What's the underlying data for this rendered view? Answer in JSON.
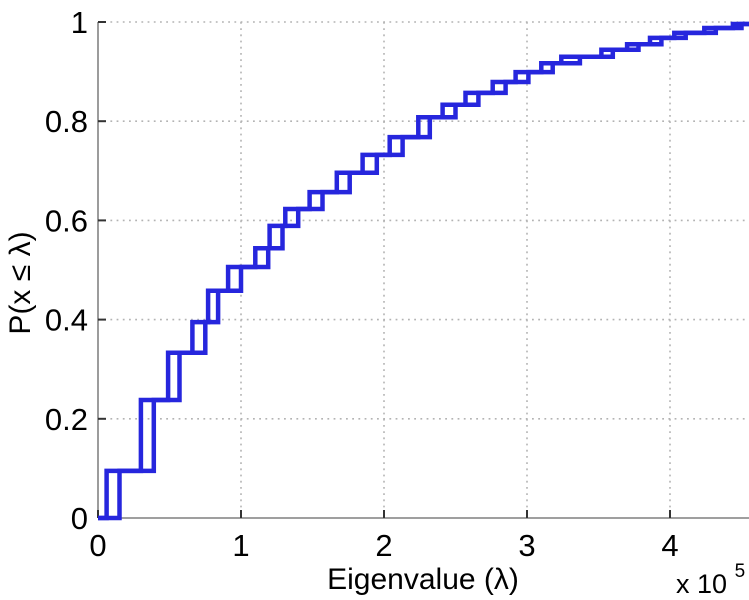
{
  "chart_data": {
    "type": "line",
    "subtype": "empirical-cdf-staircase",
    "title": "",
    "xlabel": "Eigenvalue (λ)",
    "ylabel": "P(x ≤ λ)",
    "x_unit_multiplier": {
      "base": "x 10",
      "exponent": "5"
    },
    "xlim": [
      0,
      4.55
    ],
    "ylim": [
      0,
      1
    ],
    "x_ticks": [
      {
        "value": 0,
        "label": "0"
      },
      {
        "value": 1,
        "label": "1"
      },
      {
        "value": 2,
        "label": "2"
      },
      {
        "value": 3,
        "label": "3"
      },
      {
        "value": 4,
        "label": "4"
      }
    ],
    "y_ticks": [
      {
        "value": 0,
        "label": "0"
      },
      {
        "value": 0.2,
        "label": "0.2"
      },
      {
        "value": 0.4,
        "label": "0.4"
      },
      {
        "value": 0.6,
        "label": "0.6"
      },
      {
        "value": 0.8,
        "label": "0.8"
      },
      {
        "value": 1,
        "label": "1"
      }
    ],
    "grid": "dotted",
    "legend": "none",
    "line_color": "#2626dd",
    "grid_color": "#b3b3b3",
    "axis_color": "#666666",
    "tick_color": "#333333",
    "text_color": "#000000",
    "series": [
      {
        "name": "ecdf-curve-1",
        "cumulative_probability_levels": [
          0.095,
          0.238,
          0.333,
          0.395,
          0.458,
          0.506,
          0.544,
          0.589,
          0.623,
          0.657,
          0.696,
          0.732,
          0.768,
          0.808,
          0.833,
          0.857,
          0.879,
          0.899,
          0.917,
          0.93,
          0.944,
          0.955,
          0.968,
          0.978,
          0.988,
          0.996
        ],
        "jump_x_values_e5": [
          0.06,
          0.3,
          0.49,
          0.66,
          0.77,
          0.91,
          1.1,
          1.2,
          1.31,
          1.48,
          1.67,
          1.85,
          2.04,
          2.24,
          2.41,
          2.57,
          2.76,
          2.92,
          3.1,
          3.24,
          3.52,
          3.7,
          3.86,
          4.03,
          4.24,
          4.44
        ]
      },
      {
        "name": "ecdf-curve-2",
        "cumulative_probability_levels": [
          0.095,
          0.238,
          0.333,
          0.395,
          0.458,
          0.506,
          0.544,
          0.589,
          0.623,
          0.657,
          0.696,
          0.732,
          0.768,
          0.808,
          0.833,
          0.857,
          0.879,
          0.899,
          0.917,
          0.93,
          0.944,
          0.955,
          0.968,
          0.978,
          0.988,
          0.996
        ],
        "jump_x_values_e5": [
          0.15,
          0.39,
          0.57,
          0.75,
          0.84,
          1.0,
          1.19,
          1.29,
          1.4,
          1.57,
          1.76,
          1.95,
          2.13,
          2.32,
          2.5,
          2.66,
          2.85,
          3.01,
          3.18,
          3.37,
          3.6,
          3.78,
          3.94,
          4.11,
          4.32,
          4.5
        ]
      }
    ]
  }
}
